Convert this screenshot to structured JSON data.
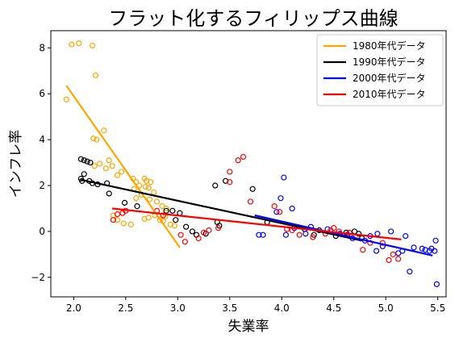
{
  "chart_data": {
    "type": "scatter",
    "title": "フラット化するフィリップス曲線",
    "xlabel": "失業率",
    "ylabel": "インフレ率",
    "xlim": [
      1.78,
      5.58
    ],
    "ylim": [
      -2.85,
      8.75
    ],
    "xticks": [
      "2.0",
      "2.5",
      "3.0",
      "3.5",
      "4.0",
      "4.5",
      "5.0",
      "5.5"
    ],
    "xtick_values": [
      2.0,
      2.5,
      3.0,
      3.5,
      4.0,
      4.5,
      5.0,
      5.5
    ],
    "yticks": [
      "−2",
      "0",
      "2",
      "4",
      "6",
      "8"
    ],
    "ytick_values": [
      -2,
      0,
      2,
      4,
      6,
      8
    ],
    "legend_position": "top-right",
    "series": [
      {
        "name": "1980年代データ",
        "color": "#FFA500",
        "fit": {
          "x": [
            1.93,
            3.02
          ],
          "y": [
            6.35,
            -0.7
          ]
        },
        "points": [
          [
            1.93,
            5.75
          ],
          [
            1.98,
            8.15
          ],
          [
            2.05,
            8.2
          ],
          [
            2.18,
            8.1
          ],
          [
            2.21,
            6.8
          ],
          [
            2.29,
            4.4
          ],
          [
            2.22,
            4.0
          ],
          [
            2.19,
            4.05
          ],
          [
            2.25,
            2.95
          ],
          [
            2.2,
            2.85
          ],
          [
            2.31,
            2.75
          ],
          [
            2.34,
            3.1
          ],
          [
            2.37,
            2.85
          ],
          [
            2.46,
            2.6
          ],
          [
            2.42,
            2.45
          ],
          [
            2.57,
            2.3
          ],
          [
            2.6,
            2.15
          ],
          [
            2.63,
            2.0
          ],
          [
            2.58,
            1.85
          ],
          [
            2.68,
            2.3
          ],
          [
            2.7,
            2.2
          ],
          [
            2.74,
            2.15
          ],
          [
            2.69,
            1.95
          ],
          [
            2.72,
            1.9
          ],
          [
            2.77,
            1.7
          ],
          [
            2.65,
            1.6
          ],
          [
            2.6,
            1.45
          ],
          [
            2.73,
            1.4
          ],
          [
            2.8,
            1.3
          ],
          [
            2.85,
            1.1
          ],
          [
            2.89,
            1.0
          ],
          [
            2.78,
            0.7
          ],
          [
            2.72,
            0.6
          ],
          [
            2.68,
            0.55
          ],
          [
            2.83,
            0.5
          ],
          [
            2.86,
            0.45
          ],
          [
            2.48,
            0.35
          ],
          [
            2.55,
            0.3
          ],
          [
            2.93,
            0.3
          ],
          [
            2.97,
            0.25
          ],
          [
            2.42,
            0.5
          ],
          [
            2.38,
            0.7
          ],
          [
            2.88,
            0.65
          ]
        ]
      },
      {
        "name": "1990年代データ",
        "color": "#000000",
        "fit": {
          "x": [
            2.07,
            4.77
          ],
          "y": [
            2.25,
            -0.4
          ]
        },
        "points": [
          [
            2.07,
            3.15
          ],
          [
            2.1,
            3.1
          ],
          [
            2.13,
            3.05
          ],
          [
            2.16,
            3.0
          ],
          [
            2.1,
            2.5
          ],
          [
            2.07,
            2.3
          ],
          [
            2.15,
            2.2
          ],
          [
            2.18,
            2.1
          ],
          [
            2.23,
            2.05
          ],
          [
            2.08,
            2.2
          ],
          [
            2.32,
            2.1
          ],
          [
            2.34,
            1.65
          ],
          [
            2.49,
            1.25
          ],
          [
            2.61,
            1.1
          ],
          [
            2.89,
            0.9
          ],
          [
            2.95,
            0.9
          ],
          [
            3.02,
            0.8
          ],
          [
            2.98,
            0.5
          ],
          [
            3.08,
            0.2
          ],
          [
            3.14,
            0.0
          ],
          [
            3.18,
            -0.15
          ],
          [
            3.27,
            -0.1
          ],
          [
            3.38,
            0.4
          ],
          [
            3.4,
            0.25
          ],
          [
            3.36,
            2.0
          ],
          [
            3.46,
            2.2
          ],
          [
            3.72,
            1.85
          ],
          [
            3.86,
            0.4
          ],
          [
            4.22,
            0.1
          ],
          [
            4.31,
            -0.15
          ],
          [
            4.52,
            -0.2
          ],
          [
            4.7,
            0.0
          ],
          [
            4.74,
            -0.1
          ],
          [
            4.77,
            -0.3
          ],
          [
            4.62,
            -0.05
          ],
          [
            4.36,
            0.05
          ]
        ]
      },
      {
        "name": "2000年代データ",
        "color": "#0000FF",
        "fit": {
          "x": [
            3.74,
            5.45
          ],
          "y": [
            0.7,
            -1.05
          ]
        },
        "points": [
          [
            3.78,
            -0.15
          ],
          [
            3.82,
            -0.15
          ],
          [
            3.95,
            0.85
          ],
          [
            3.99,
            1.45
          ],
          [
            4.02,
            2.35
          ],
          [
            4.1,
            1.0
          ],
          [
            4.04,
            -0.15
          ],
          [
            4.12,
            0.15
          ],
          [
            4.28,
            0.2
          ],
          [
            4.23,
            -0.1
          ],
          [
            4.44,
            0.1
          ],
          [
            4.56,
            -0.1
          ],
          [
            4.63,
            -0.15
          ],
          [
            4.68,
            -0.3
          ],
          [
            4.8,
            -0.4
          ],
          [
            4.85,
            -0.2
          ],
          [
            4.92,
            -0.1
          ],
          [
            4.97,
            -0.65
          ],
          [
            5.05,
            0.0
          ],
          [
            5.12,
            -0.95
          ],
          [
            5.16,
            -0.85
          ],
          [
            5.23,
            -1.75
          ],
          [
            5.27,
            -0.7
          ],
          [
            5.35,
            -0.75
          ],
          [
            5.38,
            -0.8
          ],
          [
            5.42,
            -0.85
          ],
          [
            5.44,
            -0.75
          ],
          [
            5.47,
            -0.85
          ],
          [
            5.48,
            -0.4
          ],
          [
            5.49,
            -2.3
          ],
          [
            4.91,
            -0.85
          ],
          [
            5.19,
            -0.2
          ]
        ]
      },
      {
        "name": "2010年代データ",
        "color": "#FF0000",
        "fit": {
          "x": [
            2.37,
            5.15
          ],
          "y": [
            1.0,
            -0.35
          ]
        },
        "points": [
          [
            2.38,
            0.5
          ],
          [
            2.42,
            0.75
          ],
          [
            2.47,
            0.8
          ],
          [
            2.5,
            0.9
          ],
          [
            2.8,
            0.9
          ],
          [
            2.86,
            0.7
          ],
          [
            3.03,
            -0.15
          ],
          [
            3.07,
            -0.45
          ],
          [
            3.2,
            -0.3
          ],
          [
            3.25,
            -0.05
          ],
          [
            3.3,
            0.05
          ],
          [
            3.39,
            0.15
          ],
          [
            3.5,
            2.6
          ],
          [
            3.58,
            3.1
          ],
          [
            3.63,
            3.25
          ],
          [
            3.7,
            1.3
          ],
          [
            3.93,
            1.1
          ],
          [
            4.05,
            0.1
          ],
          [
            4.1,
            0.05
          ],
          [
            4.17,
            -0.15
          ],
          [
            4.3,
            -0.25
          ],
          [
            4.42,
            -0.1
          ],
          [
            4.47,
            0.05
          ],
          [
            4.5,
            0.15
          ],
          [
            4.55,
            0.0
          ],
          [
            4.65,
            -0.05
          ],
          [
            4.78,
            -0.8
          ],
          [
            4.85,
            -0.5
          ],
          [
            4.97,
            -0.5
          ],
          [
            5.03,
            -1.25
          ],
          [
            5.07,
            -1.0
          ],
          [
            5.12,
            -1.2
          ],
          [
            3.5,
            2.15
          ],
          [
            3.98,
            0.85
          ]
        ]
      }
    ]
  }
}
